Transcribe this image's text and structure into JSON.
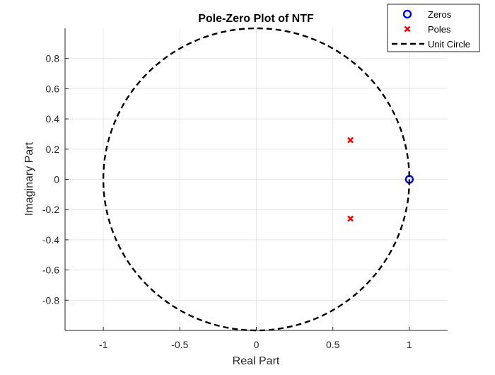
{
  "chart_data": {
    "type": "scatter",
    "title": "Pole-Zero Plot of NTF",
    "xlabel": "Real Part",
    "ylabel": "Imaginary Part",
    "xlim": [
      -1.25,
      1.25
    ],
    "ylim": [
      -1,
      1
    ],
    "xticks": [
      -1,
      -0.5,
      0,
      0.5,
      1
    ],
    "xtick_labels": [
      "-1",
      "-0.5",
      "0",
      "0.5",
      "1"
    ],
    "yticks": [
      -0.8,
      -0.6,
      -0.4,
      -0.2,
      0,
      0.2,
      0.4,
      0.6,
      0.8
    ],
    "ytick_labels": [
      "-0.8",
      "-0.6",
      "-0.4",
      "-0.2",
      "0",
      "0.2",
      "0.4",
      "0.6",
      "0.8"
    ],
    "grid": true,
    "legend_position": "top-right",
    "series": [
      {
        "name": "Zeros",
        "marker": "circle",
        "color": "#0000ff",
        "points": [
          {
            "x": 1.0,
            "y": 0.0
          }
        ]
      },
      {
        "name": "Poles",
        "marker": "x",
        "color": "#ff0000",
        "points": [
          {
            "x": 0.615,
            "y": 0.26
          },
          {
            "x": 0.615,
            "y": -0.26
          }
        ]
      },
      {
        "name": "Unit Circle",
        "line_style": "dashed",
        "color": "#000000",
        "curve": "unit-circle",
        "radius": 1
      }
    ]
  }
}
